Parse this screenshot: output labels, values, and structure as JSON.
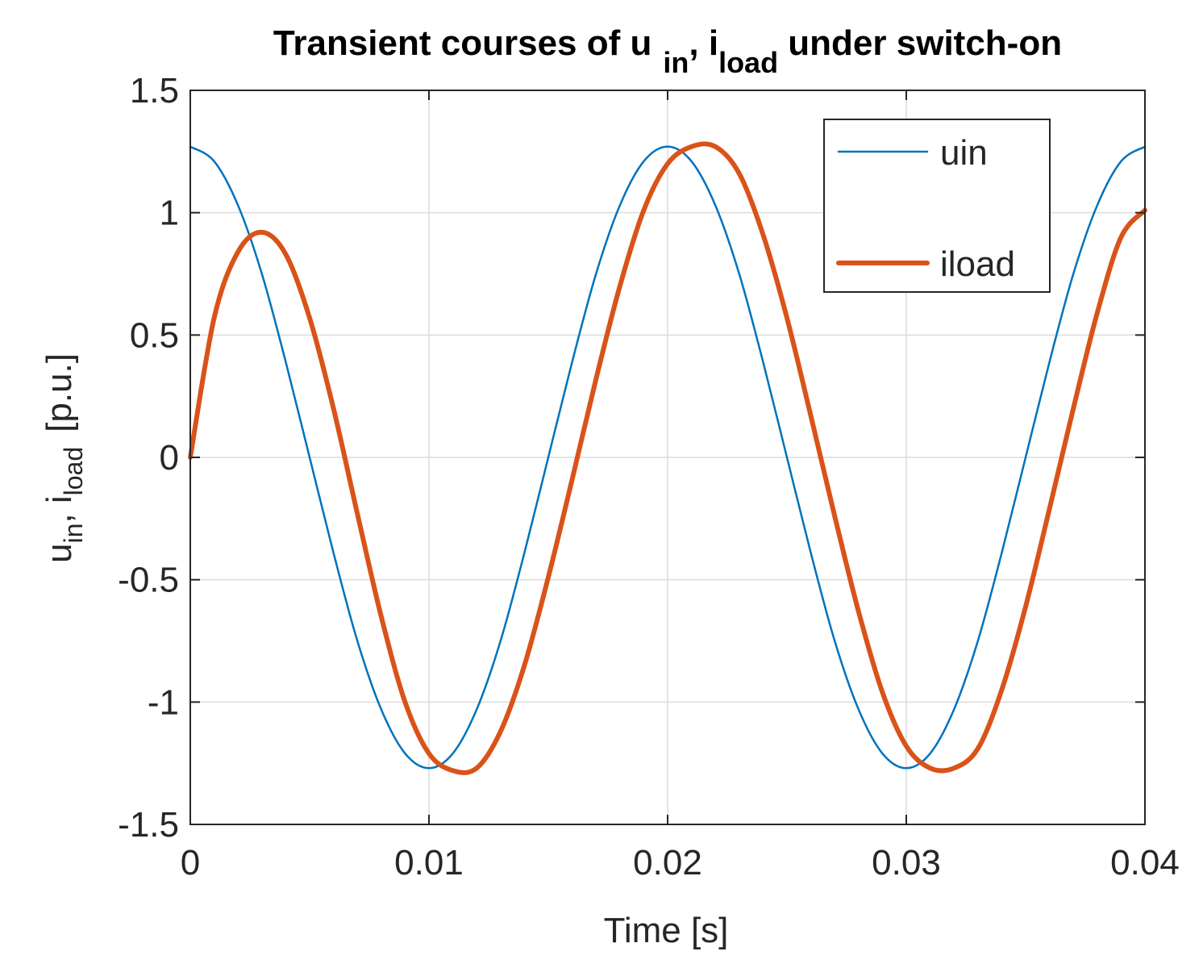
{
  "chart_data": {
    "type": "line",
    "title": {
      "prefix": "Transient courses of u",
      "sub1": "in",
      "mid": ", i",
      "sub2": "load",
      "suffix": " under switch-on"
    },
    "xlabel": "Time [s]",
    "ylabel": {
      "u": "u",
      "u_sub": "in",
      "sep": ", i",
      "i_sub": "load",
      "unit": "[p.u.]"
    },
    "xlim": [
      0,
      0.04
    ],
    "ylim": [
      -1.5,
      1.5
    ],
    "xticks": [
      0,
      0.01,
      0.02,
      0.03,
      0.04
    ],
    "xtick_labels": [
      "0",
      "0.01",
      "0.02",
      "0.03",
      "0.04"
    ],
    "yticks": [
      -1.5,
      -1,
      -0.5,
      0,
      0.5,
      1,
      1.5
    ],
    "ytick_labels": [
      "-1.5",
      "-1",
      "-0.5",
      "0",
      "0.5",
      "1",
      "1.5"
    ],
    "grid": true,
    "legend_position": "top-right",
    "series": [
      {
        "name": "uin",
        "color": "#0072BD",
        "line_width": "thin",
        "x": [
          0,
          0.001,
          0.002,
          0.003,
          0.004,
          0.005,
          0.006,
          0.007,
          0.008,
          0.009,
          0.01,
          0.011,
          0.012,
          0.013,
          0.014,
          0.015,
          0.016,
          0.017,
          0.018,
          0.019,
          0.02,
          0.021,
          0.022,
          0.023,
          0.024,
          0.025,
          0.026,
          0.027,
          0.028,
          0.029,
          0.03,
          0.031,
          0.032,
          0.033,
          0.034,
          0.035,
          0.036,
          0.037,
          0.038,
          0.039,
          0.04
        ],
        "y": [
          1.27,
          1.21,
          1.03,
          0.75,
          0.39,
          0.0,
          -0.39,
          -0.75,
          -1.03,
          -1.21,
          -1.27,
          -1.21,
          -1.03,
          -0.75,
          -0.39,
          0.0,
          0.39,
          0.75,
          1.03,
          1.21,
          1.27,
          1.21,
          1.03,
          0.75,
          0.39,
          0.0,
          -0.39,
          -0.75,
          -1.03,
          -1.21,
          -1.27,
          -1.21,
          -1.03,
          -0.75,
          -0.39,
          0.0,
          0.39,
          0.75,
          1.03,
          1.21,
          1.27
        ]
      },
      {
        "name": "iload",
        "color": "#D95319",
        "line_width": "thick",
        "x": [
          0,
          0.001,
          0.002,
          0.003,
          0.004,
          0.005,
          0.006,
          0.007,
          0.008,
          0.009,
          0.01,
          0.011,
          0.012,
          0.013,
          0.014,
          0.015,
          0.016,
          0.017,
          0.018,
          0.019,
          0.02,
          0.021,
          0.022,
          0.023,
          0.024,
          0.025,
          0.026,
          0.027,
          0.028,
          0.029,
          0.03,
          0.031,
          0.032,
          0.033,
          0.034,
          0.035,
          0.036,
          0.037,
          0.038,
          0.039,
          0.04
        ],
        "y": [
          0.0,
          0.57,
          0.84,
          0.92,
          0.83,
          0.57,
          0.2,
          -0.23,
          -0.65,
          -1.0,
          -1.21,
          -1.28,
          -1.27,
          -1.12,
          -0.85,
          -0.49,
          -0.09,
          0.32,
          0.7,
          1.01,
          1.2,
          1.27,
          1.27,
          1.16,
          0.91,
          0.57,
          0.17,
          -0.24,
          -0.63,
          -0.96,
          -1.18,
          -1.27,
          -1.27,
          -1.19,
          -0.95,
          -0.61,
          -0.21,
          0.2,
          0.59,
          0.9,
          1.01
        ]
      }
    ]
  }
}
